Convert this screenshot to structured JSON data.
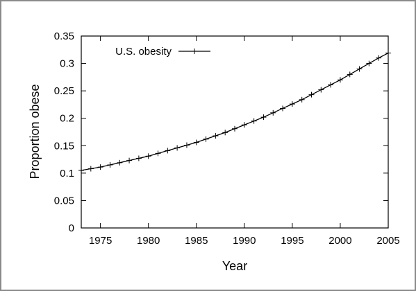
{
  "chart_data": {
    "type": "line",
    "title": "",
    "xlabel": "Year",
    "ylabel": "Proportion obese",
    "xlim": [
      1973,
      2005
    ],
    "ylim": [
      0,
      0.35
    ],
    "xticks": [
      1975,
      1980,
      1985,
      1990,
      1995,
      2000,
      2005
    ],
    "xtick_labels": [
      "1975",
      "1980",
      "1985",
      "1990",
      "1995",
      "2000",
      "2005"
    ],
    "yticks": [
      0,
      0.05,
      0.1,
      0.15,
      0.2,
      0.25,
      0.3,
      0.35
    ],
    "ytick_labels": [
      "0",
      "0.05",
      "0.1",
      "0.15",
      "0.2",
      "0.25",
      "0.3",
      "0.35"
    ],
    "grid": false,
    "legend_position": "top-left",
    "series": [
      {
        "name": "U.S. obesity",
        "color": "#000000",
        "marker": "plus",
        "x": [
          1973,
          1974,
          1975,
          1976,
          1977,
          1978,
          1979,
          1980,
          1981,
          1982,
          1983,
          1984,
          1985,
          1986,
          1987,
          1988,
          1989,
          1990,
          1991,
          1992,
          1993,
          1994,
          1995,
          1996,
          1997,
          1998,
          1999,
          2000,
          2001,
          2002,
          2003,
          2004,
          2005
        ],
        "y": [
          0.105,
          0.108,
          0.111,
          0.115,
          0.119,
          0.123,
          0.127,
          0.131,
          0.136,
          0.141,
          0.146,
          0.151,
          0.156,
          0.162,
          0.168,
          0.174,
          0.181,
          0.188,
          0.195,
          0.202,
          0.21,
          0.218,
          0.226,
          0.234,
          0.243,
          0.252,
          0.261,
          0.27,
          0.28,
          0.29,
          0.3,
          0.31,
          0.319
        ]
      }
    ]
  }
}
